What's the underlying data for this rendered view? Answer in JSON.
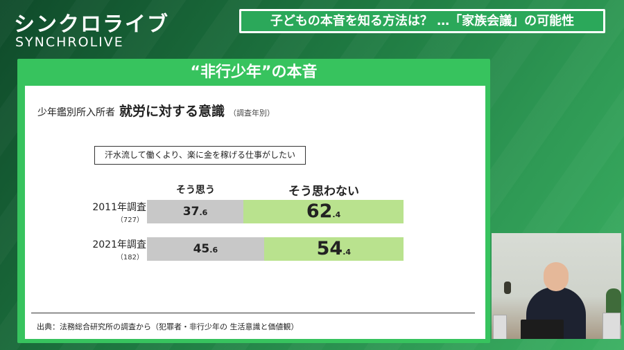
{
  "brand": {
    "logo_jp": "シンクロライブ",
    "logo_en": "SYNCHROLIVE"
  },
  "header": {
    "title": "子どもの本音を知る方法は？ …「家族会議」の可能性"
  },
  "panel": {
    "title": "“非行少年”の本音"
  },
  "chart_data": {
    "type": "bar",
    "subtype": "stacked-horizontal-100",
    "heading_small": "少年鑑別所入所者",
    "heading_large": "就労に対する意識",
    "heading_note": "（調査年別）",
    "question": "汗水流して働くより、楽に金を稼げる仕事がしたい",
    "series": [
      {
        "name": "そう思う",
        "color": "#c8c8c8",
        "values": [
          37.6,
          45.6
        ]
      },
      {
        "name": "そう思わない",
        "color": "#b9e28e",
        "values": [
          62.4,
          54.4
        ]
      }
    ],
    "categories": [
      "2011年調査",
      "2021年調査"
    ],
    "sample_sizes": [
      "（727）",
      "（182）"
    ],
    "value_labels": {
      "agree": [
        {
          "int": "37",
          "dec": ".6"
        },
        {
          "int": "45",
          "dec": ".6"
        }
      ],
      "disagree": [
        {
          "int": "62",
          "dec": ".4"
        },
        {
          "int": "54",
          "dec": ".4"
        }
      ]
    },
    "xlim": [
      0,
      100
    ]
  },
  "source": "出典：法務総合研究所の調査から（犯罪者・非行少年の 生活意識と価値観）"
}
